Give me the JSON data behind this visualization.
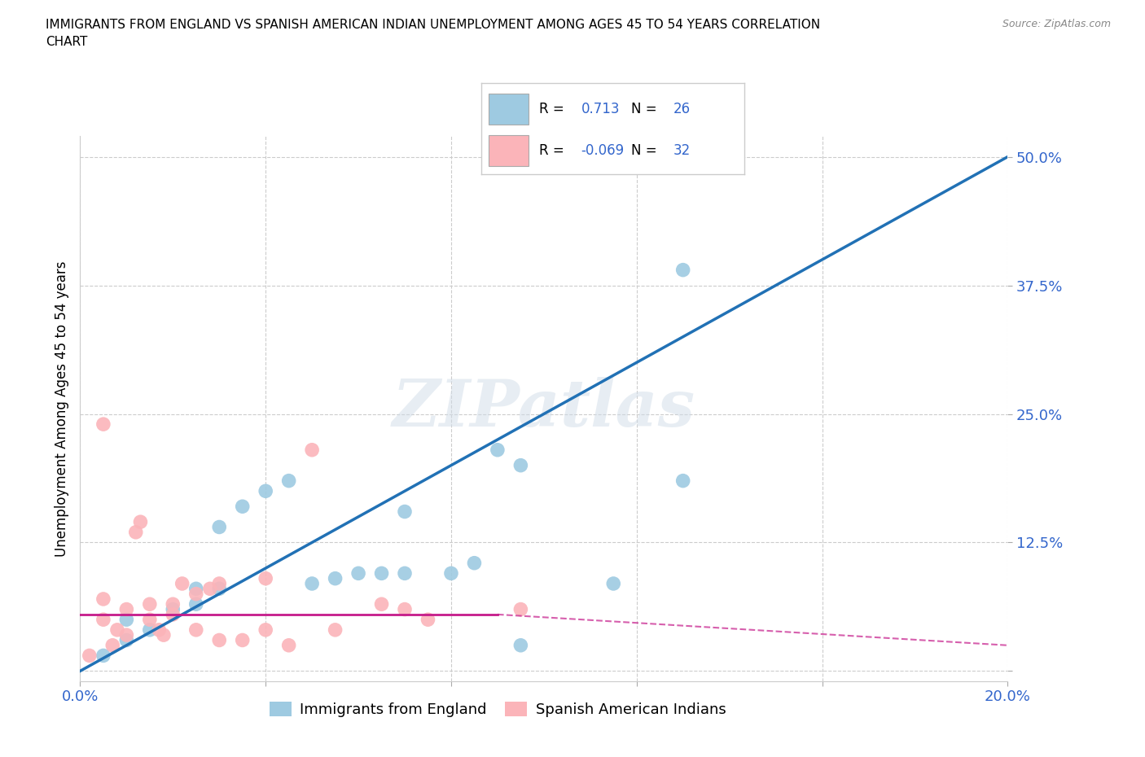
{
  "title": "IMMIGRANTS FROM ENGLAND VS SPANISH AMERICAN INDIAN UNEMPLOYMENT AMONG AGES 45 TO 54 YEARS CORRELATION\nCHART",
  "source_text": "Source: ZipAtlas.com",
  "ylabel": "Unemployment Among Ages 45 to 54 years",
  "xlim": [
    0.0,
    0.2
  ],
  "ylim": [
    -0.01,
    0.52
  ],
  "xticks": [
    0.0,
    0.04,
    0.08,
    0.12,
    0.16,
    0.2
  ],
  "xticklabels": [
    "0.0%",
    "",
    "",
    "",
    "",
    "20.0%"
  ],
  "yticks": [
    0.0,
    0.125,
    0.25,
    0.375,
    0.5
  ],
  "yticklabels": [
    "",
    "12.5%",
    "25.0%",
    "37.5%",
    "50.0%"
  ],
  "watermark": "ZIPatlas",
  "legend_R1": "0.713",
  "legend_N1": "26",
  "legend_R2": "-0.069",
  "legend_N2": "32",
  "blue_color": "#9ecae1",
  "pink_color": "#fbb4b9",
  "trendline_blue_color": "#2171b5",
  "trendline_pink_color": "#c51b8a",
  "blue_trendline": [
    [
      0.0,
      0.0
    ],
    [
      0.2,
      0.5
    ]
  ],
  "pink_trendline_solid": [
    [
      0.0,
      0.055
    ],
    [
      0.09,
      0.055
    ]
  ],
  "pink_trendline_dashed": [
    [
      0.09,
      0.055
    ],
    [
      0.2,
      0.025
    ]
  ],
  "blue_scatter": [
    [
      0.005,
      0.015
    ],
    [
      0.01,
      0.03
    ],
    [
      0.01,
      0.05
    ],
    [
      0.015,
      0.04
    ],
    [
      0.02,
      0.06
    ],
    [
      0.025,
      0.065
    ],
    [
      0.025,
      0.08
    ],
    [
      0.03,
      0.08
    ],
    [
      0.03,
      0.14
    ],
    [
      0.035,
      0.16
    ],
    [
      0.04,
      0.175
    ],
    [
      0.045,
      0.185
    ],
    [
      0.05,
      0.085
    ],
    [
      0.055,
      0.09
    ],
    [
      0.06,
      0.095
    ],
    [
      0.065,
      0.095
    ],
    [
      0.07,
      0.095
    ],
    [
      0.07,
      0.155
    ],
    [
      0.08,
      0.095
    ],
    [
      0.085,
      0.105
    ],
    [
      0.09,
      0.215
    ],
    [
      0.095,
      0.2
    ],
    [
      0.095,
      0.025
    ],
    [
      0.115,
      0.085
    ],
    [
      0.13,
      0.185
    ],
    [
      0.13,
      0.39
    ]
  ],
  "pink_scatter": [
    [
      0.002,
      0.015
    ],
    [
      0.005,
      0.05
    ],
    [
      0.005,
      0.07
    ],
    [
      0.007,
      0.025
    ],
    [
      0.008,
      0.04
    ],
    [
      0.01,
      0.035
    ],
    [
      0.01,
      0.06
    ],
    [
      0.012,
      0.135
    ],
    [
      0.013,
      0.145
    ],
    [
      0.015,
      0.05
    ],
    [
      0.015,
      0.065
    ],
    [
      0.017,
      0.04
    ],
    [
      0.018,
      0.035
    ],
    [
      0.02,
      0.055
    ],
    [
      0.02,
      0.065
    ],
    [
      0.022,
      0.085
    ],
    [
      0.025,
      0.075
    ],
    [
      0.025,
      0.04
    ],
    [
      0.028,
      0.08
    ],
    [
      0.03,
      0.085
    ],
    [
      0.03,
      0.03
    ],
    [
      0.035,
      0.03
    ],
    [
      0.04,
      0.04
    ],
    [
      0.04,
      0.09
    ],
    [
      0.045,
      0.025
    ],
    [
      0.05,
      0.215
    ],
    [
      0.055,
      0.04
    ],
    [
      0.065,
      0.065
    ],
    [
      0.07,
      0.06
    ],
    [
      0.075,
      0.05
    ],
    [
      0.095,
      0.06
    ],
    [
      0.005,
      0.24
    ]
  ]
}
